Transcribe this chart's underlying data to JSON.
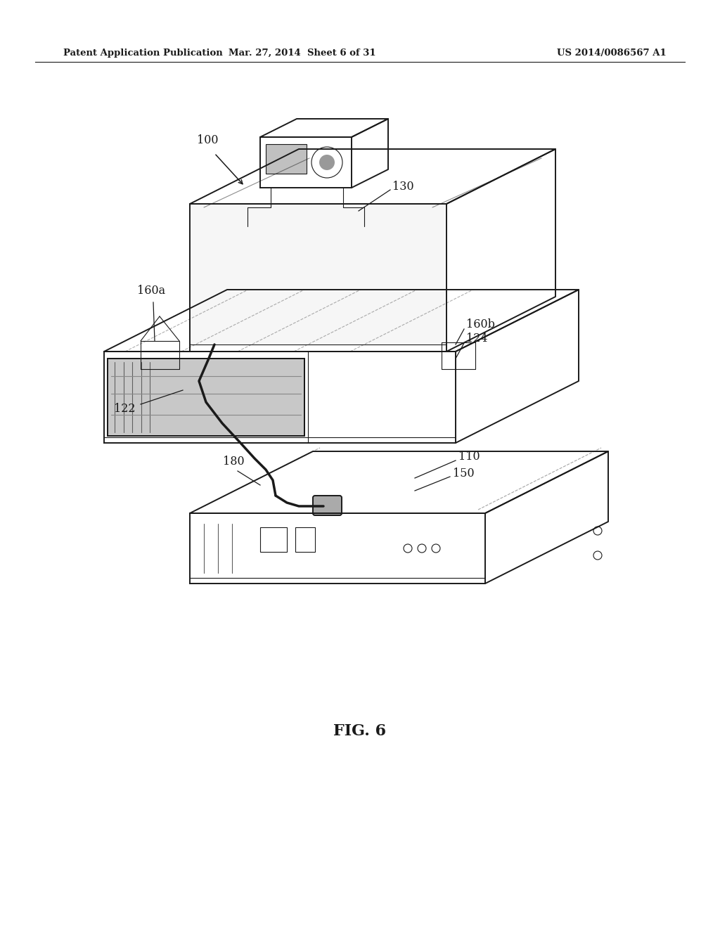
{
  "bg_color": "#ffffff",
  "header_left": "Patent Application Publication",
  "header_mid": "Mar. 27, 2014  Sheet 6 of 31",
  "header_right": "US 2014/0086567 A1",
  "fig_label": "FIG. 6",
  "line_color": "#1a1a1a"
}
